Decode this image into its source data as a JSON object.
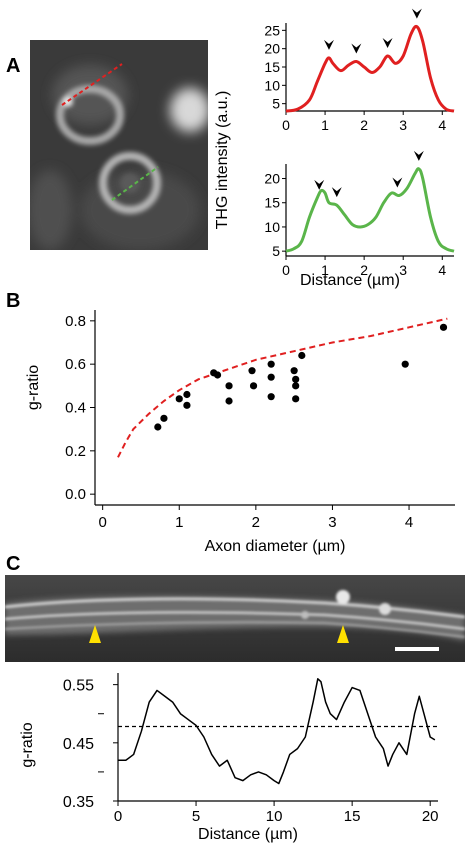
{
  "panels": {
    "a": "A",
    "b": "B",
    "c": "C"
  },
  "colors": {
    "red": "#e02020",
    "green": "#5ab54a",
    "black": "#000000",
    "arrow": "#ffe000"
  },
  "chart_data": [
    {
      "type": "line",
      "panel": "A-top",
      "series": [
        {
          "color": "red",
          "x": [
            0,
            0.3,
            0.6,
            0.8,
            1.0,
            1.1,
            1.2,
            1.4,
            1.6,
            1.8,
            2.0,
            2.2,
            2.4,
            2.6,
            2.8,
            3.0,
            3.2,
            3.35,
            3.5,
            3.7,
            3.9,
            4.1,
            4.3
          ],
          "y": [
            3,
            3.5,
            6,
            11,
            16,
            17.5,
            16,
            14,
            15.5,
            16.5,
            15,
            13.5,
            15,
            18,
            16,
            18,
            24,
            26,
            22,
            12,
            6,
            3.5,
            3
          ]
        }
      ],
      "peaks_x": [
        1.1,
        1.8,
        2.6,
        3.35
      ],
      "xlim": [
        0,
        4.3
      ],
      "ylim": [
        3,
        27
      ],
      "xticks": [
        "0",
        "1",
        "2",
        "3",
        "4"
      ],
      "yticks": [
        "5",
        "10",
        "15",
        "20",
        "25"
      ]
    },
    {
      "type": "line",
      "panel": "A-bottom",
      "series": [
        {
          "color": "green",
          "x": [
            0,
            0.2,
            0.4,
            0.6,
            0.8,
            0.9,
            1.0,
            1.1,
            1.3,
            1.5,
            1.7,
            1.9,
            2.1,
            2.3,
            2.5,
            2.7,
            2.9,
            3.1,
            3.3,
            3.4,
            3.5,
            3.7,
            3.9,
            4.1,
            4.3
          ],
          "y": [
            5,
            5.5,
            7,
            12,
            16,
            17.5,
            17,
            15,
            14.5,
            12.5,
            10.5,
            10,
            10.5,
            12,
            15,
            17,
            16.5,
            18,
            21,
            22,
            20,
            12,
            7,
            5.5,
            5
          ]
        }
      ],
      "peaks_x": [
        0.85,
        1.3,
        2.85,
        3.4
      ],
      "xlim": [
        0,
        4.3
      ],
      "ylim": [
        4,
        23
      ],
      "xticks": [
        "0",
        "1",
        "2",
        "3",
        "4"
      ],
      "yticks": [
        "5",
        "10",
        "15",
        "20"
      ],
      "xlabel": "Distance (µm)"
    },
    {
      "type": "scatter",
      "panel": "B",
      "xlabel": "Axon diameter (µm)",
      "ylabel": "g-ratio",
      "xlim": [
        -0.1,
        4.6
      ],
      "ylim": [
        -0.05,
        0.85
      ],
      "xticks": [
        "0",
        "1",
        "2",
        "3",
        "4"
      ],
      "yticks": [
        "0.0",
        "0.2",
        "0.4",
        "0.6",
        "0.8"
      ],
      "points": [
        [
          0.72,
          0.31
        ],
        [
          0.8,
          0.35
        ],
        [
          1.0,
          0.44
        ],
        [
          1.1,
          0.41
        ],
        [
          1.1,
          0.46
        ],
        [
          1.45,
          0.56
        ],
        [
          1.5,
          0.55
        ],
        [
          1.65,
          0.5
        ],
        [
          1.65,
          0.43
        ],
        [
          1.95,
          0.57
        ],
        [
          1.97,
          0.5
        ],
        [
          2.2,
          0.6
        ],
        [
          2.2,
          0.54
        ],
        [
          2.2,
          0.45
        ],
        [
          2.5,
          0.57
        ],
        [
          2.52,
          0.5
        ],
        [
          2.52,
          0.44
        ],
        [
          2.52,
          0.53
        ],
        [
          2.6,
          0.64
        ],
        [
          3.95,
          0.6
        ],
        [
          4.45,
          0.77
        ]
      ],
      "curve": {
        "style": "dashed",
        "color": "red",
        "x": [
          0.2,
          0.3,
          0.4,
          0.6,
          0.8,
          1.0,
          1.25,
          1.5,
          1.75,
          2.0,
          2.5,
          3.0,
          3.5,
          4.0,
          4.5
        ],
        "y": [
          0.17,
          0.24,
          0.3,
          0.37,
          0.43,
          0.48,
          0.53,
          0.56,
          0.59,
          0.62,
          0.66,
          0.7,
          0.73,
          0.77,
          0.81
        ]
      }
    },
    {
      "type": "line",
      "panel": "C",
      "xlabel": "Distance (µm)",
      "ylabel": "g-ratio",
      "xlim": [
        0,
        20.5
      ],
      "ylim": [
        0.35,
        0.57
      ],
      "xticks": [
        "0",
        "5",
        "10",
        "15",
        "20"
      ],
      "yticks": [
        "0.35",
        "0.45",
        "0.55"
      ],
      "reference_y": 0.478,
      "series": [
        {
          "color": "black",
          "x": [
            0,
            0.5,
            1,
            1.5,
            2,
            2.5,
            3,
            3.5,
            4,
            4.5,
            5,
            5.5,
            6,
            6.5,
            7,
            7.5,
            8,
            8.5,
            9,
            9.5,
            10,
            10.3,
            10.6,
            11,
            11.5,
            12,
            12.5,
            12.8,
            13,
            13.3,
            13.6,
            14,
            14.5,
            15,
            15.5,
            16,
            16.5,
            17,
            17.3,
            17.6,
            18,
            18.5,
            19,
            19.3,
            19.6,
            20,
            20.3
          ],
          "y": [
            0.42,
            0.42,
            0.43,
            0.47,
            0.52,
            0.54,
            0.53,
            0.52,
            0.5,
            0.49,
            0.48,
            0.46,
            0.43,
            0.41,
            0.42,
            0.39,
            0.385,
            0.395,
            0.4,
            0.395,
            0.385,
            0.38,
            0.4,
            0.43,
            0.44,
            0.46,
            0.52,
            0.56,
            0.555,
            0.52,
            0.5,
            0.49,
            0.52,
            0.545,
            0.54,
            0.5,
            0.46,
            0.44,
            0.41,
            0.43,
            0.45,
            0.43,
            0.5,
            0.53,
            0.5,
            0.46,
            0.455
          ]
        }
      ]
    }
  ]
}
